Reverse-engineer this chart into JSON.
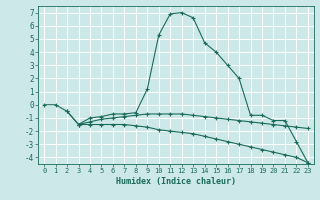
{
  "title": "",
  "xlabel": "Humidex (Indice chaleur)",
  "ylabel": "",
  "background_color": "#cde8e8",
  "line_color": "#1a6b5a",
  "grid_color": "#ffffff",
  "xlim": [
    -0.5,
    23.5
  ],
  "ylim": [
    -4.5,
    7.5
  ],
  "yticks": [
    -4,
    -3,
    -2,
    -1,
    0,
    1,
    2,
    3,
    4,
    5,
    6,
    7
  ],
  "xticks": [
    0,
    1,
    2,
    3,
    4,
    5,
    6,
    7,
    8,
    9,
    10,
    11,
    12,
    13,
    14,
    15,
    16,
    17,
    18,
    19,
    20,
    21,
    22,
    23
  ],
  "line1_x": [
    0,
    1,
    2,
    3,
    4,
    5,
    6,
    7,
    8,
    9,
    10,
    11,
    12,
    13,
    14,
    15,
    16,
    17,
    18,
    19,
    20,
    21,
    22,
    23
  ],
  "line1_y": [
    0,
    0,
    -0.5,
    -1.5,
    -1.0,
    -0.9,
    -0.7,
    -0.7,
    -0.6,
    1.2,
    5.3,
    6.9,
    7.0,
    6.6,
    4.7,
    4.0,
    3.0,
    2.0,
    -0.8,
    -0.8,
    -1.2,
    -1.2,
    -2.8,
    -4.4
  ],
  "line2_x": [
    2,
    3,
    4,
    5,
    6,
    7,
    8,
    9,
    10,
    11,
    12,
    13,
    14,
    15,
    16,
    17,
    18,
    19,
    20,
    21,
    22,
    23
  ],
  "line2_y": [
    -0.5,
    -1.5,
    -1.3,
    -1.1,
    -1.0,
    -0.9,
    -0.8,
    -0.7,
    -0.7,
    -0.7,
    -0.7,
    -0.8,
    -0.9,
    -1.0,
    -1.1,
    -1.2,
    -1.3,
    -1.4,
    -1.5,
    -1.6,
    -1.7,
    -1.8
  ],
  "line3_x": [
    3,
    4,
    5,
    6,
    7,
    8,
    9,
    10,
    11,
    12,
    13,
    14,
    15,
    16,
    17,
    18,
    19,
    20,
    21,
    22,
    23
  ],
  "line3_y": [
    -1.5,
    -1.5,
    -1.5,
    -1.5,
    -1.5,
    -1.6,
    -1.7,
    -1.9,
    -2.0,
    -2.1,
    -2.2,
    -2.4,
    -2.6,
    -2.8,
    -3.0,
    -3.2,
    -3.4,
    -3.6,
    -3.8,
    -4.0,
    -4.4
  ]
}
